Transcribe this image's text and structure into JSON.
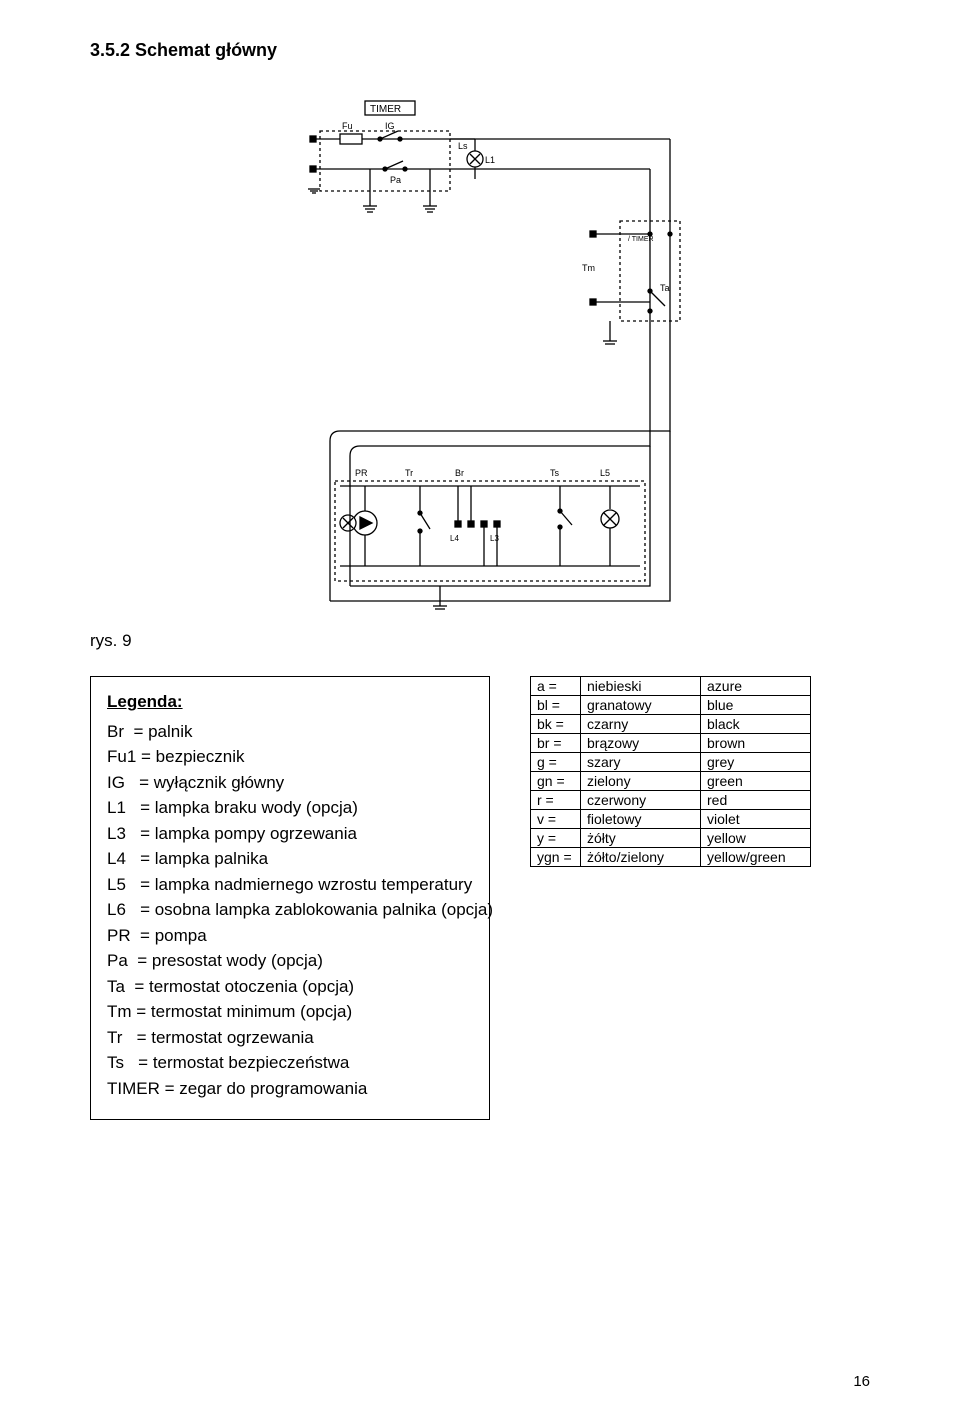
{
  "heading": "3.5.2 Schemat główny",
  "figure_label": "rys. 9",
  "legend": {
    "title": "Legenda:",
    "items": [
      {
        "sym": "Br",
        "pad": "  ",
        "desc": "palnik"
      },
      {
        "sym": "Fu1",
        "pad": " ",
        "desc": "bezpiecznik"
      },
      {
        "sym": "IG",
        "pad": "   ",
        "desc": "wyłącznik główny"
      },
      {
        "sym": "L1",
        "pad": "   ",
        "desc": "lampka braku wody (opcja)"
      },
      {
        "sym": "L3",
        "pad": "   ",
        "desc": "lampka pompy ogrzewania"
      },
      {
        "sym": "L4",
        "pad": "   ",
        "desc": "lampka palnika"
      },
      {
        "sym": "L5",
        "pad": "   ",
        "desc": "lampka nadmiernego wzrostu temperatury"
      },
      {
        "sym": "L6",
        "pad": "   ",
        "desc": "osobna lampka zablokowania palnika (opcja)"
      },
      {
        "sym": "PR",
        "pad": "  ",
        "desc": "pompa"
      },
      {
        "sym": "Pa",
        "pad": "  ",
        "desc": "presostat wody (opcja)"
      },
      {
        "sym": "Ta",
        "pad": "  ",
        "desc": "termostat otoczenia (opcja)"
      },
      {
        "sym": "Tm",
        "pad": " ",
        "desc": "termostat minimum (opcja)"
      },
      {
        "sym": "Tr",
        "pad": "   ",
        "desc": "termostat ogrzewania"
      },
      {
        "sym": "Ts",
        "pad": "   ",
        "desc": "termostat bezpieczeństwa"
      },
      {
        "sym": "TIMER",
        "pad": " ",
        "desc": "zegar do programowania"
      }
    ]
  },
  "color_table": {
    "rows": [
      {
        "code": "a =",
        "pl": "niebieski",
        "en": "azure"
      },
      {
        "code": "bl =",
        "pl": "granatowy",
        "en": "blue"
      },
      {
        "code": "bk =",
        "pl": "czarny",
        "en": "black"
      },
      {
        "code": "br =",
        "pl": "brązowy",
        "en": "brown"
      },
      {
        "code": "g =",
        "pl": "szary",
        "en": "grey"
      },
      {
        "code": "gn =",
        "pl": "zielony",
        "en": "green"
      },
      {
        "code": "r =",
        "pl": "czerwony",
        "en": "red"
      },
      {
        "code": "v =",
        "pl": "fioletowy",
        "en": "violet"
      },
      {
        "code": "y =",
        "pl": "żółty",
        "en": "yellow"
      },
      {
        "code": "ygn =",
        "pl": "żółto/zielony",
        "en": "yellow/green"
      }
    ]
  },
  "page_number": "16",
  "diagram": {
    "stroke": "#000000",
    "bg": "#ffffff",
    "labels": {
      "timer": "TIMER",
      "fu": "Fu",
      "ig": "IG",
      "ls": "Ls",
      "pa": "Pa",
      "l1": "L1",
      "tm": "Tm",
      "ta": "Ta",
      "pr": "PR",
      "tr": "Tr",
      "br": "Br",
      "l4": "L4",
      "l3": "L3",
      "ts": "Ts",
      "l5": "L5"
    }
  }
}
